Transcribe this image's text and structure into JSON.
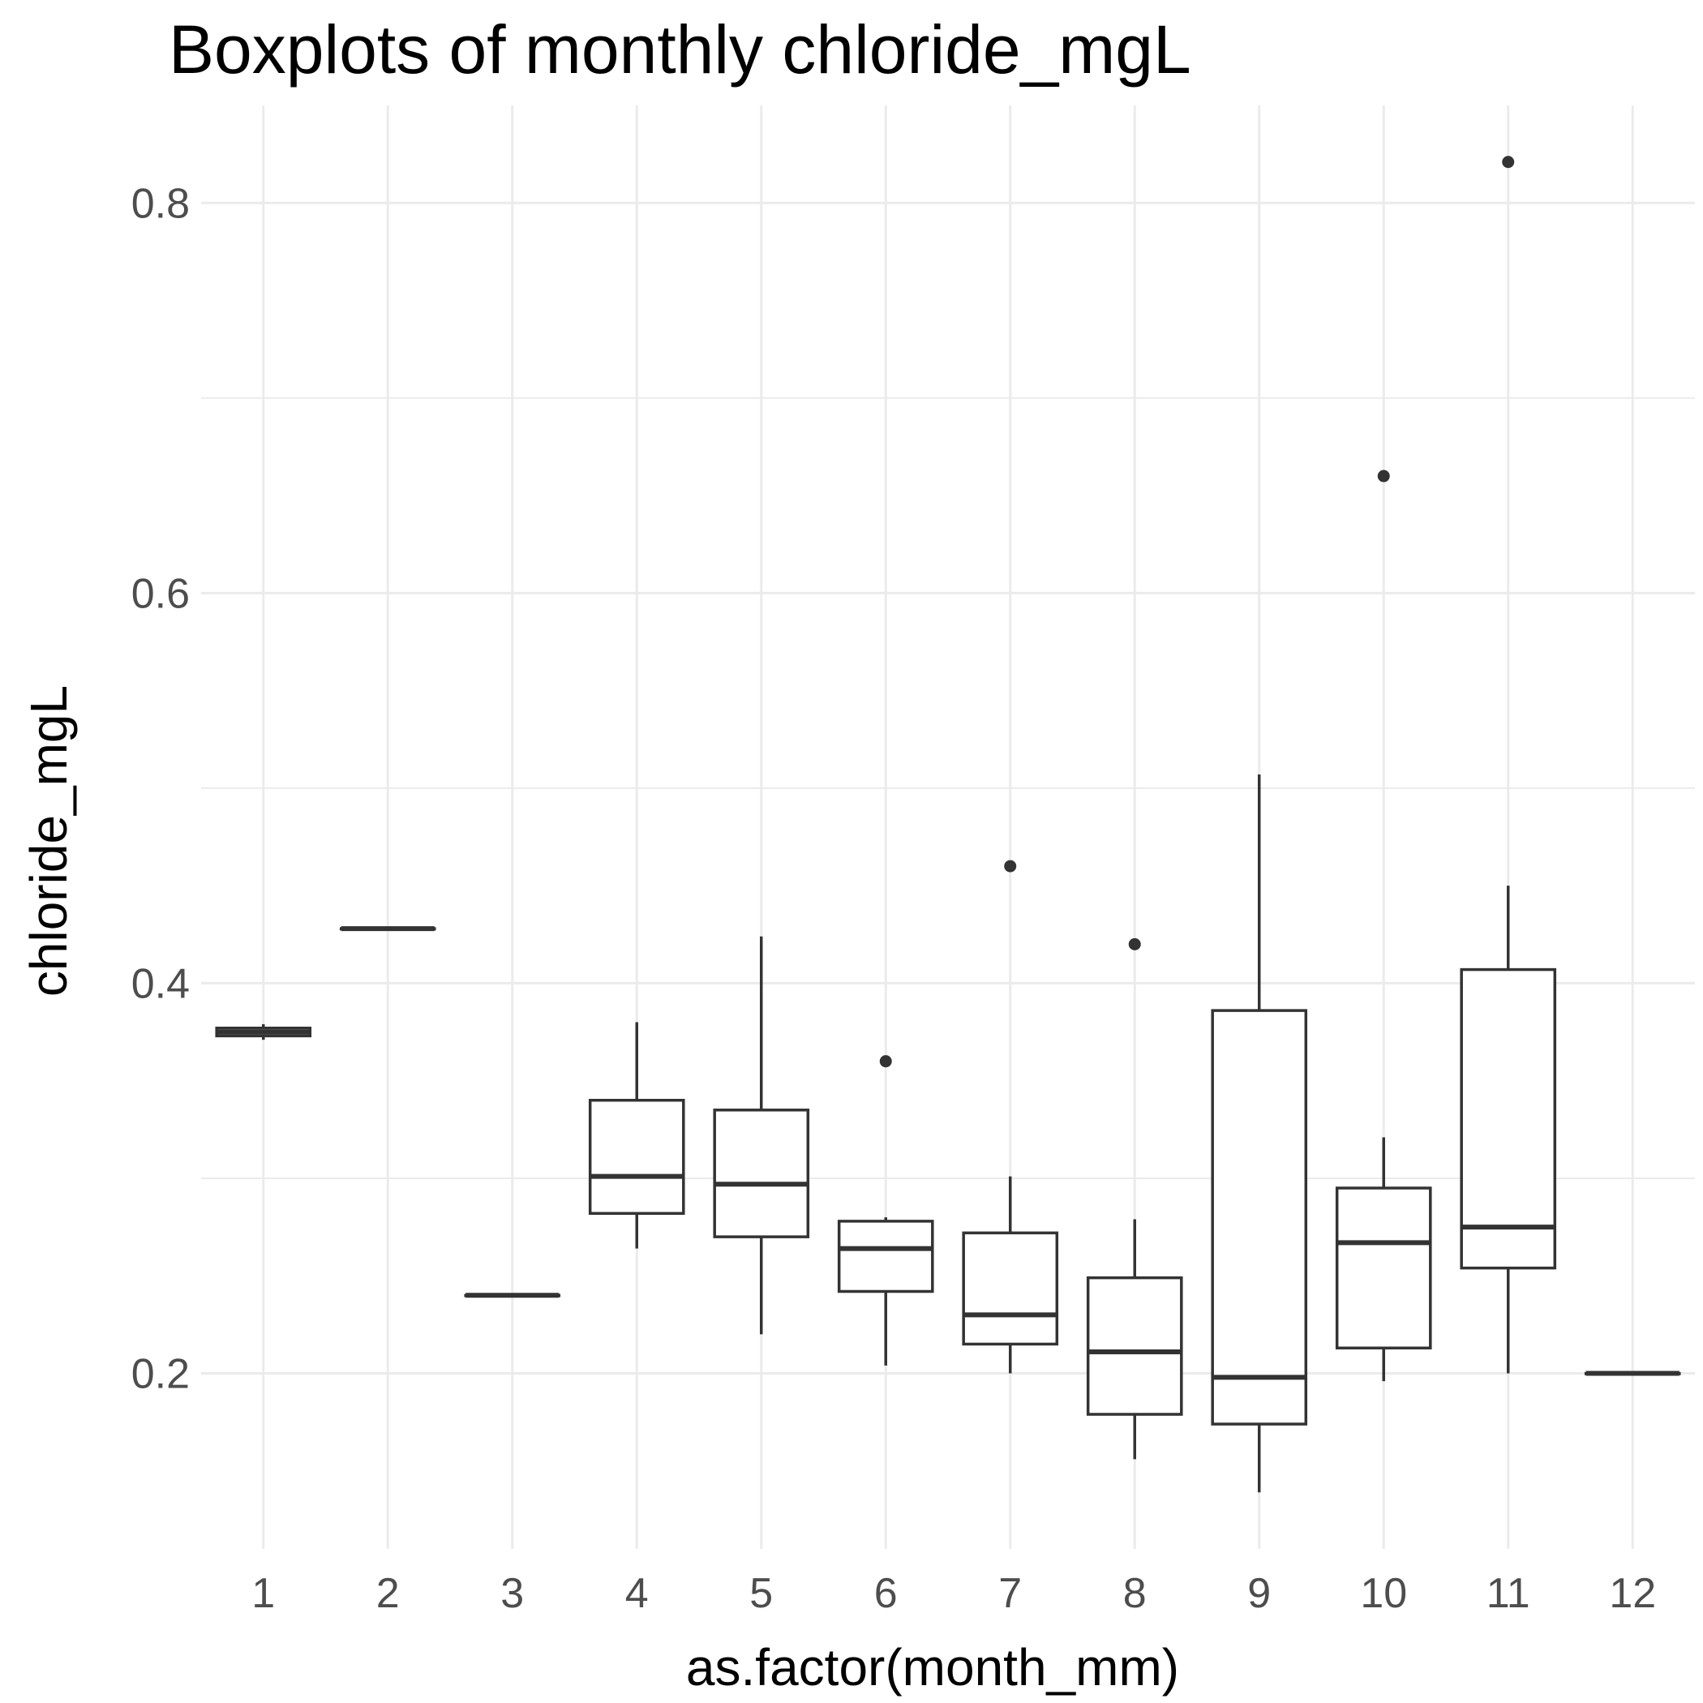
{
  "chart_data": {
    "type": "boxplot",
    "title": "Boxplots of monthly chloride_mgL",
    "xlabel": "as.factor(month_mm)",
    "ylabel": "chloride_mgL",
    "categories": [
      "1",
      "2",
      "3",
      "4",
      "5",
      "6",
      "7",
      "8",
      "9",
      "10",
      "11",
      "12"
    ],
    "ylim": [
      0.11,
      0.85
    ],
    "yticks": [
      0.2,
      0.4,
      0.6,
      0.8
    ],
    "ytick_labels": [
      "0.2",
      "0.4",
      "0.6",
      "0.8"
    ],
    "grid": true,
    "boxes": [
      {
        "category": "1",
        "whisker_low": 0.371,
        "q1": 0.373,
        "median": 0.375,
        "q3": 0.377,
        "whisker_high": 0.379,
        "outliers": []
      },
      {
        "category": "2",
        "whisker_low": 0.428,
        "q1": 0.428,
        "median": 0.428,
        "q3": 0.428,
        "whisker_high": 0.428,
        "outliers": []
      },
      {
        "category": "3",
        "whisker_low": 0.24,
        "q1": 0.24,
        "median": 0.24,
        "q3": 0.24,
        "whisker_high": 0.24,
        "outliers": []
      },
      {
        "category": "4",
        "whisker_low": 0.264,
        "q1": 0.282,
        "median": 0.301,
        "q3": 0.34,
        "whisker_high": 0.38,
        "outliers": []
      },
      {
        "category": "5",
        "whisker_low": 0.22,
        "q1": 0.27,
        "median": 0.297,
        "q3": 0.335,
        "whisker_high": 0.424,
        "outliers": []
      },
      {
        "category": "6",
        "whisker_low": 0.204,
        "q1": 0.242,
        "median": 0.264,
        "q3": 0.278,
        "whisker_high": 0.28,
        "outliers": [
          0.36
        ]
      },
      {
        "category": "7",
        "whisker_low": 0.2,
        "q1": 0.215,
        "median": 0.23,
        "q3": 0.272,
        "whisker_high": 0.301,
        "outliers": [
          0.46
        ]
      },
      {
        "category": "8",
        "whisker_low": 0.156,
        "q1": 0.179,
        "median": 0.211,
        "q3": 0.249,
        "whisker_high": 0.279,
        "outliers": [
          0.42
        ]
      },
      {
        "category": "9",
        "whisker_low": 0.139,
        "q1": 0.174,
        "median": 0.198,
        "q3": 0.386,
        "whisker_high": 0.507,
        "outliers": []
      },
      {
        "category": "10",
        "whisker_low": 0.196,
        "q1": 0.213,
        "median": 0.267,
        "q3": 0.295,
        "whisker_high": 0.321,
        "outliers": [
          0.66
        ]
      },
      {
        "category": "11",
        "whisker_low": 0.2,
        "q1": 0.254,
        "median": 0.275,
        "q3": 0.407,
        "whisker_high": 0.45,
        "outliers": [
          0.821
        ]
      },
      {
        "category": "12",
        "whisker_low": 0.2,
        "q1": 0.2,
        "median": 0.2,
        "q3": 0.2,
        "whisker_high": 0.2,
        "outliers": []
      }
    ],
    "colors": {
      "box_stroke": "#333333",
      "box_fill": "#ffffff",
      "grid": "#ebebeb",
      "tick_text": "#4d4d4d",
      "title_text": "#000000"
    }
  }
}
